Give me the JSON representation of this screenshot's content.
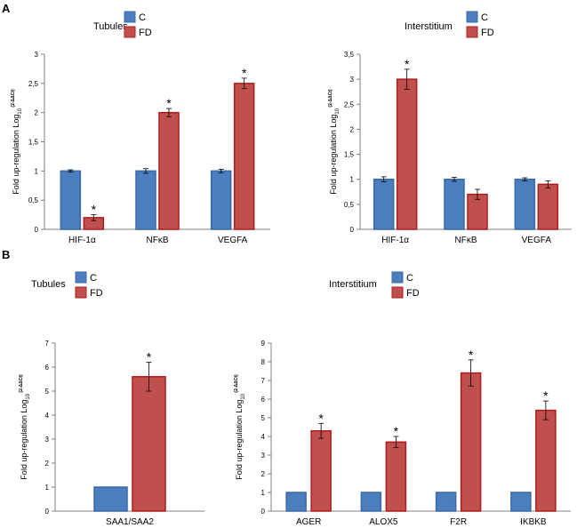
{
  "figure": {
    "panel_labels": [
      "A",
      "B"
    ]
  },
  "colors": {
    "control_fill": "#4a7ebf",
    "control_stroke": "#3a69a3",
    "fd_fill": "#c0504d",
    "fd_stroke": "#b01c1c",
    "axis": "#808080",
    "text": "#000000"
  },
  "chart_data": [
    {
      "id": "A-tubules",
      "panel": "A",
      "type": "bar",
      "title": "Tubules",
      "ylabel_main": "Fold up-regulation Log",
      "ylabel_sub": "10",
      "ylabel_sup": "(2-ΔΔCt)",
      "categories": [
        "HIF-1α",
        "NFκB",
        "VEGFA"
      ],
      "series": [
        {
          "name": "C",
          "values": [
            1.0,
            1.0,
            1.0
          ],
          "errors": [
            0.02,
            0.04,
            0.03
          ],
          "sig": [
            false,
            false,
            false
          ]
        },
        {
          "name": "FD",
          "values": [
            0.2,
            2.0,
            2.5
          ],
          "errors": [
            0.05,
            0.07,
            0.09
          ],
          "sig": [
            true,
            true,
            true
          ]
        }
      ],
      "ylim": [
        0,
        3
      ],
      "ticks": [
        0,
        0.5,
        1,
        1.5,
        2,
        2.5,
        3
      ],
      "tick_labels": [
        "0",
        "0,5",
        "1",
        "1,5",
        "2",
        "2,5",
        "3"
      ],
      "sig_marker": "*",
      "legend": [
        "C",
        "FD"
      ]
    },
    {
      "id": "A-interstitium",
      "panel": "A",
      "type": "bar",
      "title": "Interstitium",
      "ylabel_main": "Fold up-regulation Log",
      "ylabel_sub": "10",
      "ylabel_sup": "(2-ΔΔCt)",
      "categories": [
        "HIF-1α",
        "NFκB",
        "VEGFA"
      ],
      "series": [
        {
          "name": "C",
          "values": [
            1.0,
            1.0,
            1.0
          ],
          "errors": [
            0.05,
            0.04,
            0.03
          ],
          "sig": [
            false,
            false,
            false
          ]
        },
        {
          "name": "FD",
          "values": [
            3.0,
            0.7,
            0.9
          ],
          "errors": [
            0.2,
            0.1,
            0.07
          ],
          "sig": [
            true,
            false,
            false
          ]
        }
      ],
      "ylim": [
        0,
        3.5
      ],
      "ticks": [
        0,
        0.5,
        1,
        1.5,
        2,
        2.5,
        3,
        3.5
      ],
      "tick_labels": [
        "0",
        "0,5",
        "1",
        "1,5",
        "2",
        "2,5",
        "3",
        "3,5"
      ],
      "sig_marker": "*",
      "legend": [
        "C",
        "FD"
      ]
    },
    {
      "id": "B-tubules",
      "panel": "B",
      "type": "bar",
      "title": "Tubules",
      "ylabel_main": "Fold up-regulation Log",
      "ylabel_sub": "10",
      "ylabel_sup": "(2-ΔΔCt)",
      "categories": [
        "SAA1/SAA2"
      ],
      "series": [
        {
          "name": "C",
          "values": [
            1.0
          ],
          "errors": [
            0
          ],
          "sig": [
            false
          ]
        },
        {
          "name": "FD",
          "values": [
            5.6
          ],
          "errors": [
            0.6
          ],
          "sig": [
            true
          ]
        }
      ],
      "ylim": [
        0,
        7
      ],
      "ticks": [
        0,
        1,
        2,
        3,
        4,
        5,
        6,
        7
      ],
      "tick_labels": [
        "0",
        "1",
        "2",
        "3",
        "4",
        "5",
        "6",
        "7"
      ],
      "sig_marker": "*",
      "legend": [
        "C",
        "FD"
      ]
    },
    {
      "id": "B-interstitium",
      "panel": "B",
      "type": "bar",
      "title": "Interstitium",
      "ylabel_main": "Fold up-regulation Log",
      "ylabel_sub": "10",
      "ylabel_sup": "(2-ΔΔCt)",
      "categories": [
        "AGER",
        "ALOX5",
        "F2R",
        "IKBKB"
      ],
      "series": [
        {
          "name": "C",
          "values": [
            1.0,
            1.0,
            1.0,
            1.0
          ],
          "errors": [
            0,
            0,
            0,
            0
          ],
          "sig": [
            false,
            false,
            false,
            false
          ]
        },
        {
          "name": "FD",
          "values": [
            4.3,
            3.7,
            7.4,
            5.4
          ],
          "errors": [
            0.4,
            0.3,
            0.7,
            0.5
          ],
          "sig": [
            true,
            true,
            true,
            true
          ]
        }
      ],
      "ylim": [
        0,
        9
      ],
      "ticks": [
        0,
        1,
        2,
        3,
        4,
        5,
        6,
        7,
        8,
        9
      ],
      "tick_labels": [
        "0",
        "1",
        "2",
        "3",
        "4",
        "5",
        "6",
        "7",
        "8",
        "9"
      ],
      "sig_marker": "*",
      "legend": [
        "C",
        "FD"
      ]
    }
  ]
}
